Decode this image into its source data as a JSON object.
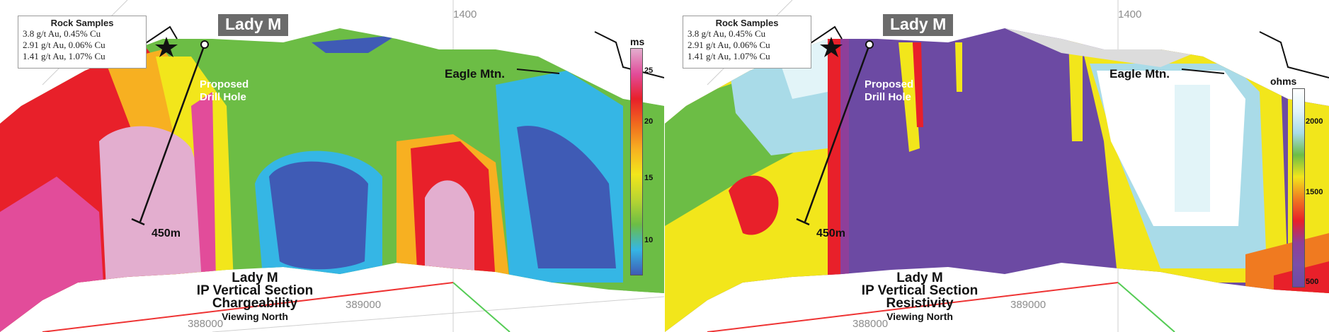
{
  "panels": [
    {
      "id": "chargeability",
      "rock_samples": {
        "title": "Rock Samples",
        "rows": [
          "3.8 g/t Au, 0.45% Cu",
          "2.91 g/t Au, 0.06% Cu",
          "1.41 g/t Au, 1.07% Cu"
        ]
      },
      "site_name": "Lady M",
      "drill_hole": {
        "line1": "Proposed",
        "line2": "Drill Hole",
        "depth": "450m"
      },
      "mountain": "Eagle Mtn.",
      "axis_ticks": {
        "top": "1400",
        "x1": "388000",
        "x2": "389000"
      },
      "title": {
        "line1": "Lady M",
        "line2": "IP Vertical Section",
        "line3": "Chargeability",
        "line4": "Viewing North"
      },
      "scale": {
        "unit": "ms",
        "ticks": [
          "25",
          "20",
          "15",
          "10"
        ],
        "colors": [
          "#e3aecf",
          "#e24c9a",
          "#e8202a",
          "#f06a1e",
          "#f7b021",
          "#f2e61b",
          "#b9d531",
          "#6cbd45",
          "#35b6e5",
          "#3f5bb5"
        ]
      }
    },
    {
      "id": "resistivity",
      "rock_samples": {
        "title": "Rock Samples",
        "rows": [
          "3.8 g/t Au, 0.45% Cu",
          "2.91 g/t Au, 0.06% Cu",
          "1.41 g/t Au, 1.07% Cu"
        ]
      },
      "site_name": "Lady M",
      "drill_hole": {
        "line1": "Proposed",
        "line2": "Drill Hole",
        "depth": "450m"
      },
      "mountain": "Eagle Mtn.",
      "axis_ticks": {
        "top": "1400",
        "x1": "388000",
        "x2": "389000"
      },
      "title": {
        "line1": "Lady M",
        "line2": "IP Vertical Section",
        "line3": "Resistivity",
        "line4": "Viewing North"
      },
      "scale": {
        "unit": "ohms",
        "ticks": [
          "2000",
          "1500",
          "500"
        ],
        "colors": [
          "#ffffff",
          "#e2f4f8",
          "#a9dbe8",
          "#6cbd45",
          "#f2e61b",
          "#f07a20",
          "#e8202a",
          "#8e3f9a",
          "#7a4fa8",
          "#6c4aa3"
        ]
      }
    }
  ]
}
